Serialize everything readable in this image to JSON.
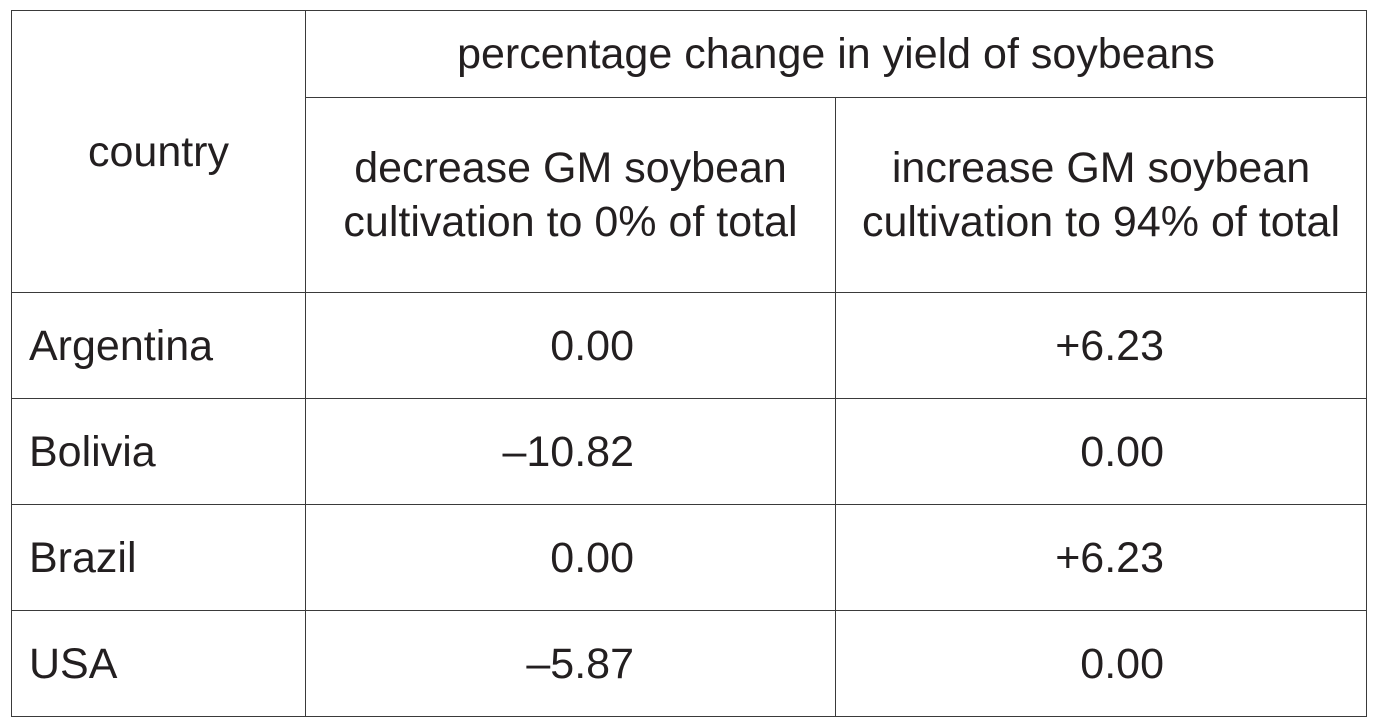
{
  "table": {
    "header": {
      "country": "country",
      "group": "percentage change in yield of soybeans",
      "columns": [
        "decrease GM soybean cultivation to 0% of total",
        "increase GM soybean cultivation to 94% of total"
      ]
    },
    "rows": [
      [
        "Argentina",
        "0.00",
        "+6.23"
      ],
      [
        "Bolivia",
        "–10.82",
        "0.00"
      ],
      [
        "Brazil",
        "0.00",
        "+6.23"
      ],
      [
        "USA",
        "–5.87",
        "0.00"
      ]
    ]
  }
}
